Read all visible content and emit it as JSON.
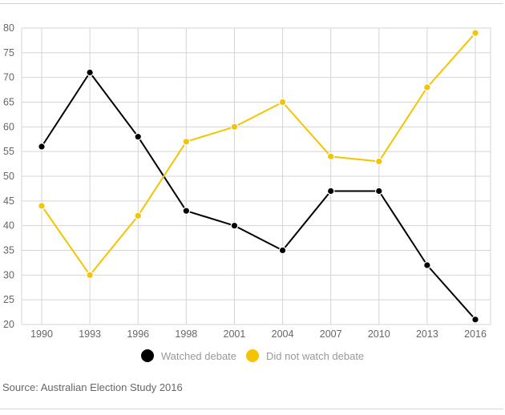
{
  "chart_data": {
    "type": "line",
    "title": "",
    "xlabel": "",
    "ylabel": "",
    "categories": [
      "1990",
      "1993",
      "1996",
      "1998",
      "2001",
      "2004",
      "2007",
      "2010",
      "2013",
      "2016"
    ],
    "ylim": [
      20,
      80
    ],
    "yticks": [
      20,
      25,
      30,
      35,
      40,
      45,
      50,
      55,
      60,
      65,
      70,
      75,
      80
    ],
    "grid": true,
    "legend_position": "bottom",
    "series": [
      {
        "name": "Watched debate",
        "color": "#000000",
        "values": [
          56,
          71,
          58,
          43,
          40,
          35,
          47,
          47,
          32,
          21
        ]
      },
      {
        "name": "Did not watch debate",
        "color": "#f5c400",
        "values": [
          44,
          30,
          42,
          57,
          60,
          65,
          54,
          53,
          68,
          79
        ]
      }
    ]
  },
  "legend": {
    "items": [
      {
        "label": "Watched debate",
        "color": "#000000"
      },
      {
        "label": "Did not watch debate",
        "color": "#f5c400"
      }
    ]
  },
  "source": "Source: Australian Election Study 2016"
}
